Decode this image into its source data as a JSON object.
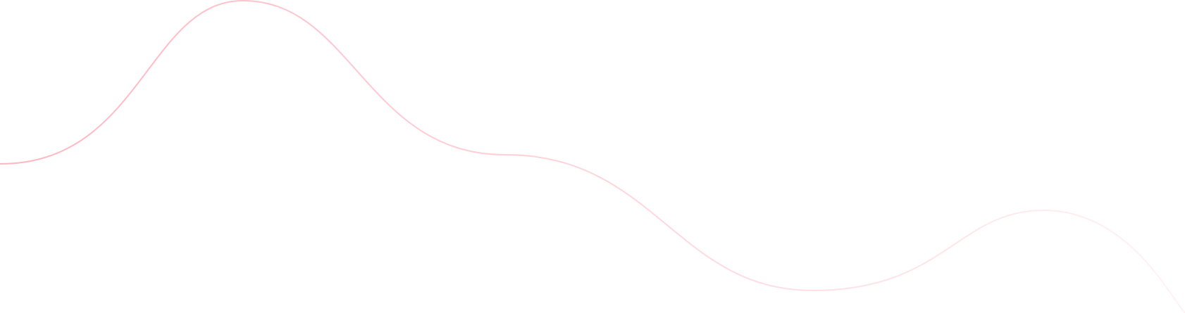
{
  "decoration": {
    "shape": "wavy-line",
    "colors": {
      "start": "#ffb6c1",
      "end": "#fff2f5"
    }
  }
}
